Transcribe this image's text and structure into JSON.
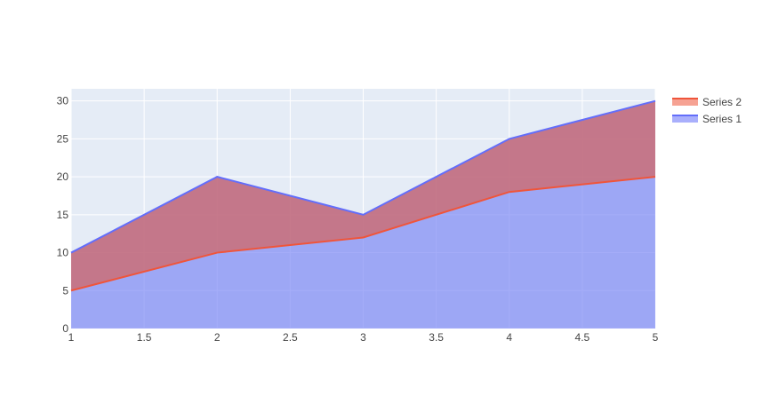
{
  "chart_data": {
    "type": "area",
    "title": "",
    "xlabel": "",
    "ylabel": "",
    "x": [
      1,
      2,
      3,
      4,
      5
    ],
    "xlim": [
      1,
      5
    ],
    "ylim": [
      0,
      31.6
    ],
    "x_ticks": [
      1,
      1.5,
      2,
      2.5,
      3,
      3.5,
      4,
      4.5,
      5
    ],
    "x_tick_labels": [
      "1",
      "1.5",
      "2",
      "2.5",
      "3",
      "3.5",
      "4",
      "4.5",
      "5"
    ],
    "y_ticks": [
      0,
      5,
      10,
      15,
      20,
      25,
      30
    ],
    "y_tick_labels": [
      "0",
      "5",
      "10",
      "15",
      "20",
      "25",
      "30"
    ],
    "grid": true,
    "legend_position": "top-right",
    "plot_background": "#E5ECF6",
    "series": [
      {
        "name": "Series 1",
        "values": [
          5,
          10,
          12,
          18,
          20
        ],
        "line_color": "#636EFA",
        "fill_color": "#7F8AF5"
      },
      {
        "name": "Series 2",
        "values": [
          10,
          20,
          15,
          25,
          30
        ],
        "line_color": "#EF553B",
        "fill_color": "#C06A7E"
      }
    ],
    "legend_order": [
      "Series 2",
      "Series 1"
    ]
  }
}
